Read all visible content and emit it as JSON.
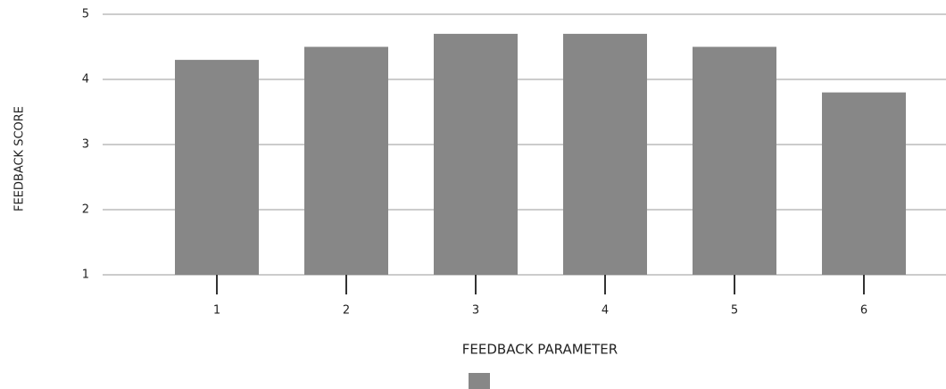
{
  "chart_data": {
    "type": "bar",
    "x_label": "FEEDBACK PARAMETER",
    "y_label": "FEEDBACK SCORE",
    "categories": [
      "1",
      "2",
      "3",
      "4",
      "5",
      "6"
    ],
    "values": [
      4.3,
      4.5,
      4.7,
      4.7,
      4.5,
      3.8
    ],
    "color": "#878787",
    "ylim": [
      1,
      5
    ],
    "yticks": [
      1,
      2,
      3,
      4,
      5
    ],
    "grid": true
  }
}
